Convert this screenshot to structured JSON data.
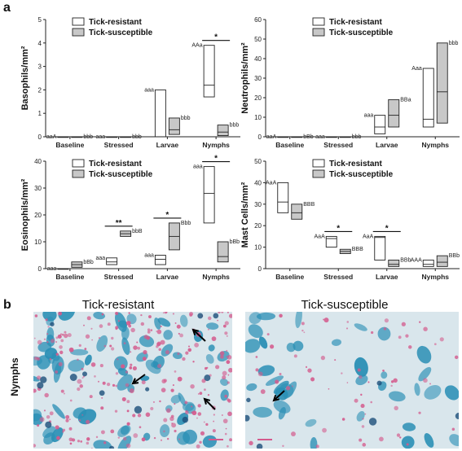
{
  "figure": {
    "panel_a": "a",
    "panel_b": "b"
  },
  "chart_data": [
    {
      "type": "box",
      "id": "basophils",
      "ylabel": "Basophils/mm²",
      "ylim": [
        0,
        5
      ],
      "yticks": [
        0,
        1,
        2,
        3,
        4,
        5
      ],
      "categories": [
        "Baseline",
        "Stressed",
        "Larvae",
        "Nymphs"
      ],
      "legend": [
        "Tick-resistant",
        "Tick-susceptible"
      ],
      "series": [
        {
          "name": "Tick-resistant",
          "color": "#ffffff",
          "boxes": [
            {
              "low": 0,
              "mid": 0,
              "high": 0
            },
            {
              "low": 0,
              "mid": 0,
              "high": 0
            },
            {
              "low": 0,
              "mid": 0,
              "high": 2.0
            },
            {
              "low": 1.7,
              "mid": 2.2,
              "high": 3.9
            }
          ],
          "labels": [
            "aaA",
            "aaa",
            "aaa",
            "AAa"
          ]
        },
        {
          "name": "Tick-susceptible",
          "color": "#c8c8c8",
          "boxes": [
            {
              "low": 0,
              "mid": 0,
              "high": 0
            },
            {
              "low": 0,
              "mid": 0,
              "high": 0
            },
            {
              "low": 0.1,
              "mid": 0.3,
              "high": 0.8
            },
            {
              "low": 0.05,
              "mid": 0.2,
              "high": 0.5
            }
          ],
          "labels": [
            "bbb",
            "bbb",
            "bbb",
            "bbb"
          ]
        }
      ],
      "significance": [
        {
          "category": "Nymphs",
          "text": "*"
        }
      ]
    },
    {
      "type": "box",
      "id": "neutrophils",
      "ylabel": "Neutrophils/mm²",
      "ylim": [
        0,
        60
      ],
      "yticks": [
        0,
        10,
        20,
        30,
        40,
        50,
        60
      ],
      "categories": [
        "Baseline",
        "Stressed",
        "Larvae",
        "Nymphs"
      ],
      "legend": [
        "Tick-resistant",
        "Tick-susceptible"
      ],
      "series": [
        {
          "name": "Tick-resistant",
          "color": "#ffffff",
          "boxes": [
            {
              "low": 0,
              "mid": 0,
              "high": 0
            },
            {
              "low": 0,
              "mid": 0,
              "high": 0
            },
            {
              "low": 1.5,
              "mid": 5,
              "high": 11
            },
            {
              "low": 5,
              "mid": 9,
              "high": 35
            }
          ],
          "labels": [
            "aaA",
            "aaa",
            "aaa",
            "Aaa"
          ]
        },
        {
          "name": "Tick-susceptible",
          "color": "#c8c8c8",
          "boxes": [
            {
              "low": 0,
              "mid": 0,
              "high": 0
            },
            {
              "low": 0,
              "mid": 0,
              "high": 0
            },
            {
              "low": 5,
              "mid": 11,
              "high": 19
            },
            {
              "low": 7,
              "mid": 23,
              "high": 48
            }
          ],
          "labels": [
            "bBb",
            "bbb",
            "BBa",
            "bbb"
          ]
        }
      ],
      "significance": []
    },
    {
      "type": "box",
      "id": "eosinophils",
      "ylabel": "Eosinophils/mm²",
      "ylim": [
        0,
        40
      ],
      "yticks": [
        0,
        10,
        20,
        30,
        40
      ],
      "categories": [
        "Baseline",
        "Stressed",
        "Larvae",
        "Nymphs"
      ],
      "legend": [
        "Tick-resistant",
        "Tick-susceptible"
      ],
      "series": [
        {
          "name": "Tick-resistant",
          "color": "#ffffff",
          "boxes": [
            {
              "low": 0,
              "mid": 0,
              "high": 0
            },
            {
              "low": 1.5,
              "mid": 2.5,
              "high": 4
            },
            {
              "low": 1.5,
              "mid": 3.5,
              "high": 5
            },
            {
              "low": 17,
              "mid": 28,
              "high": 38
            }
          ],
          "labels": [
            "aaa",
            "aaa",
            "aaa",
            "aaa"
          ]
        },
        {
          "name": "Tick-susceptible",
          "color": "#c8c8c8",
          "boxes": [
            {
              "low": 0.5,
              "mid": 1.5,
              "high": 2.5
            },
            {
              "low": 12,
              "mid": 13,
              "high": 14
            },
            {
              "low": 7,
              "mid": 12,
              "high": 17
            },
            {
              "low": 2.5,
              "mid": 4.5,
              "high": 10
            }
          ],
          "labels": [
            "bBb",
            "bbB",
            "Bbb",
            "bBb"
          ]
        }
      ],
      "significance": [
        {
          "category": "Stressed",
          "text": "**"
        },
        {
          "category": "Larvae",
          "text": "*"
        },
        {
          "category": "Nymphs",
          "text": "*"
        }
      ]
    },
    {
      "type": "box",
      "id": "mast-cells",
      "ylabel": "Mast Cells/mm²",
      "ylim": [
        0,
        50
      ],
      "yticks": [
        0,
        10,
        20,
        30,
        40,
        50
      ],
      "categories": [
        "Baseline",
        "Stressed",
        "Larvae",
        "Nymphs"
      ],
      "legend": [
        "Tick-resistant",
        "Tick-susceptible"
      ],
      "series": [
        {
          "name": "Tick-resistant",
          "color": "#ffffff",
          "boxes": [
            {
              "low": 26,
              "mid": 31,
              "high": 40
            },
            {
              "low": 10,
              "mid": 14,
              "high": 15
            },
            {
              "low": 4,
              "mid": 14.5,
              "high": 15
            },
            {
              "low": 1,
              "mid": 2,
              "high": 4
            }
          ],
          "labels": [
            "AaA",
            "AaA",
            "AaA",
            "AAA"
          ]
        },
        {
          "name": "Tick-susceptible",
          "color": "#c8c8c8",
          "boxes": [
            {
              "low": 23,
              "mid": 26,
              "high": 30
            },
            {
              "low": 7,
              "mid": 8,
              "high": 9
            },
            {
              "low": 1,
              "mid": 2,
              "high": 4
            },
            {
              "low": 1,
              "mid": 3,
              "high": 6
            }
          ],
          "labels": [
            "BBB",
            "BBB",
            "BBb",
            "BBb"
          ]
        }
      ],
      "significance": [
        {
          "category": "Stressed",
          "text": "*"
        },
        {
          "category": "Larvae",
          "text": "*"
        }
      ]
    }
  ],
  "histology": {
    "resistant_title": "Tick-resistant",
    "susceptible_title": "Tick-susceptible",
    "row_label": "Nymphs",
    "colors": {
      "background": "#d9e6ec",
      "stain_blue": "#2a8fb5",
      "stain_pink": "#d45a8c",
      "dark_nucleus": "#1c4f7a"
    }
  }
}
